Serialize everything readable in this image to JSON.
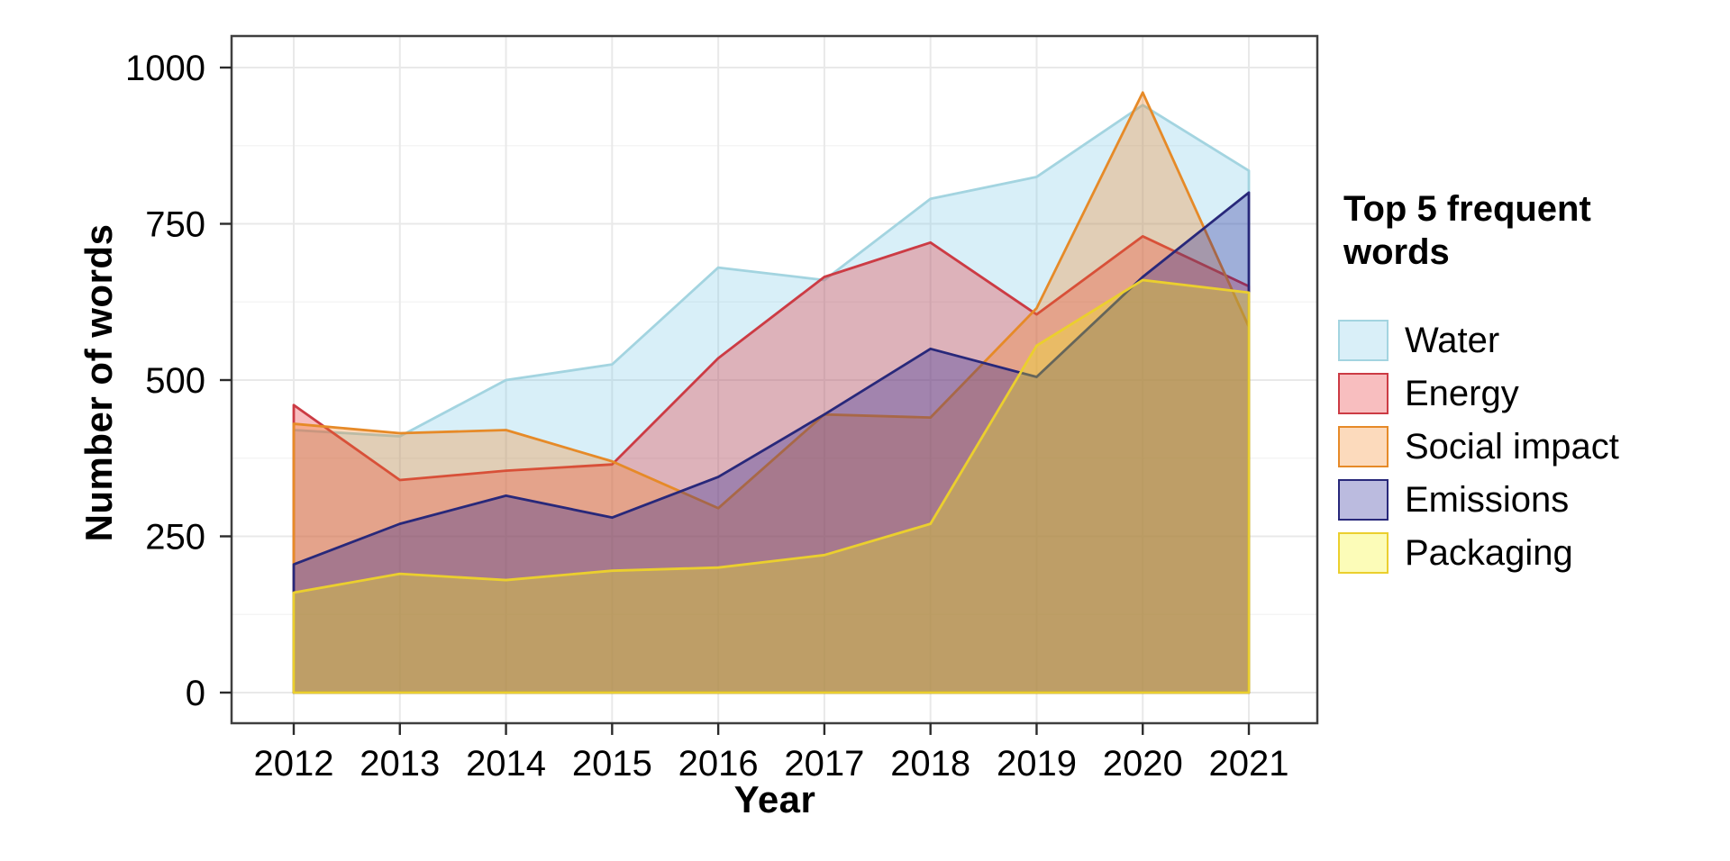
{
  "chart_data": {
    "type": "area",
    "title": "",
    "xlabel": "Year",
    "ylabel": "Number of words",
    "x": [
      2012,
      2013,
      2014,
      2015,
      2016,
      2017,
      2018,
      2019,
      2020,
      2021
    ],
    "yticks": [
      0,
      250,
      500,
      750,
      1000
    ],
    "ylim": [
      0,
      1000
    ],
    "grid": "horizontal major every 250 with minor every 125; vertical major at each year",
    "legend_position": "right",
    "legend_title": "Top 5 frequent words",
    "fill_opacity": 0.3,
    "background": "#ffffff",
    "series": [
      {
        "name": "Water",
        "fill": "#7FCBE8",
        "line": "#A3D4E0",
        "values": [
          420,
          410,
          500,
          525,
          680,
          660,
          790,
          825,
          940,
          835
        ]
      },
      {
        "name": "Energy",
        "fill": "#E8252B",
        "line": "#CC3B44",
        "values": [
          460,
          340,
          355,
          365,
          535,
          665,
          720,
          605,
          730,
          650
        ]
      },
      {
        "name": "Social impact",
        "fill": "#F5821E",
        "line": "#E68A28",
        "values": [
          430,
          415,
          420,
          370,
          295,
          445,
          440,
          615,
          960,
          585
        ]
      },
      {
        "name": "Emissions",
        "fill": "#1C1C93",
        "line": "#28287A",
        "values": [
          205,
          270,
          315,
          280,
          345,
          445,
          550,
          505,
          665,
          800
        ]
      },
      {
        "name": "Packaging",
        "fill": "#F5F512",
        "line": "#EBCF2E",
        "values": [
          160,
          190,
          180,
          195,
          200,
          220,
          270,
          555,
          660,
          640
        ]
      }
    ]
  }
}
